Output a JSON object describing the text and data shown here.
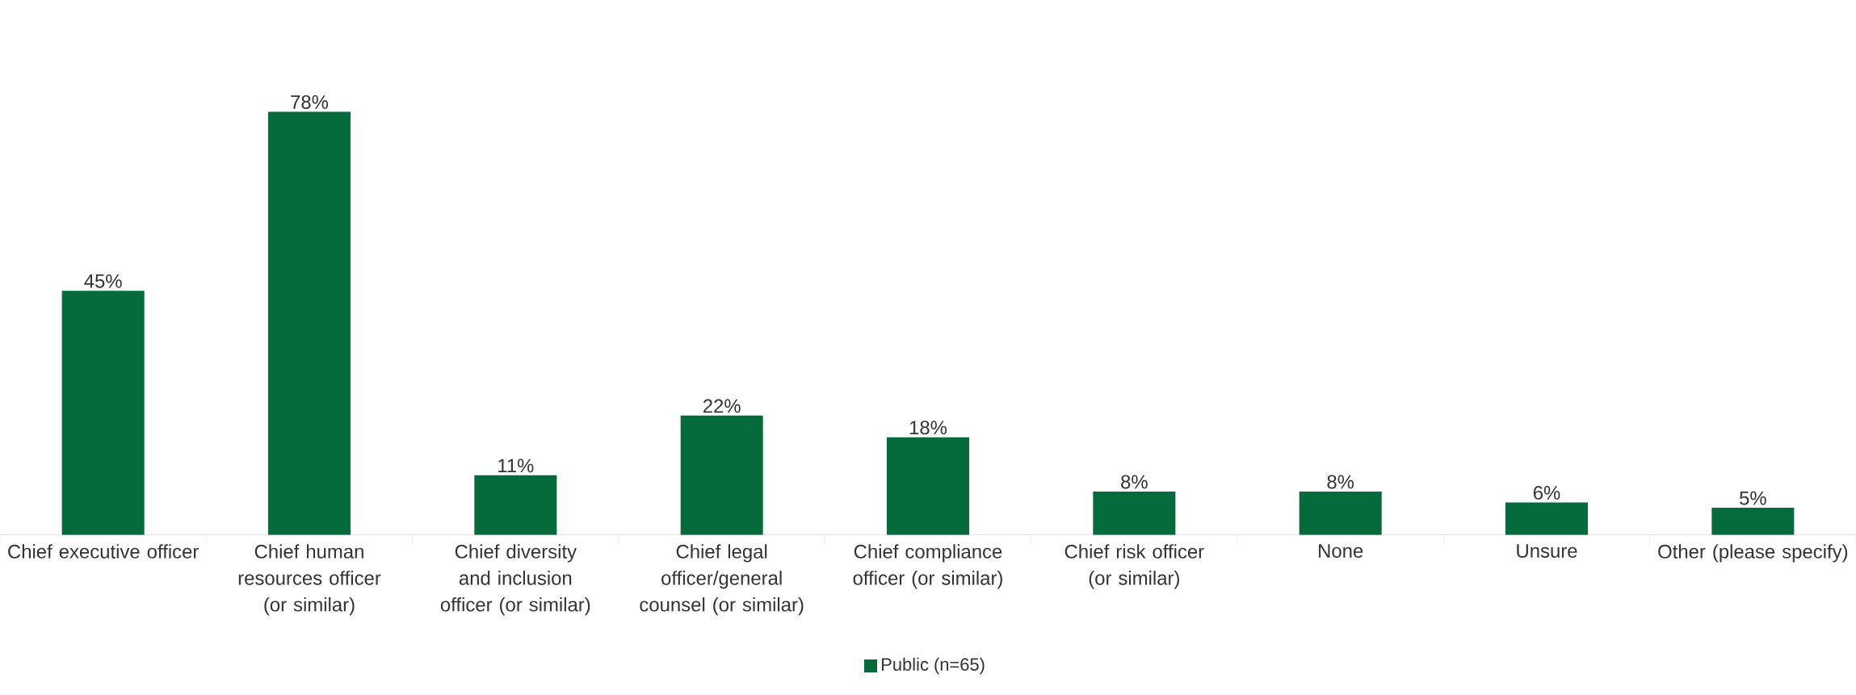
{
  "chart_data": {
    "type": "bar",
    "categories": [
      "Chief executive officer",
      "Chief human resources officer (or similar)",
      "Chief diversity and inclusion officer (or similar)",
      "Chief legal officer/general counsel (or similar)",
      "Chief compliance officer (or similar)",
      "Chief risk officer (or similar)",
      "None",
      "Unsure",
      "Other (please specify)"
    ],
    "series": [
      {
        "name": "Public (n=65)",
        "color": "#056b3a",
        "values": [
          45,
          78,
          11,
          22,
          18,
          8,
          8,
          6,
          5
        ],
        "value_labels": [
          "45%",
          "78%",
          "11%",
          "22%",
          "18%",
          "8%",
          "8%",
          "6%",
          "5%"
        ]
      }
    ],
    "legend": "bottom",
    "grid": false
  }
}
